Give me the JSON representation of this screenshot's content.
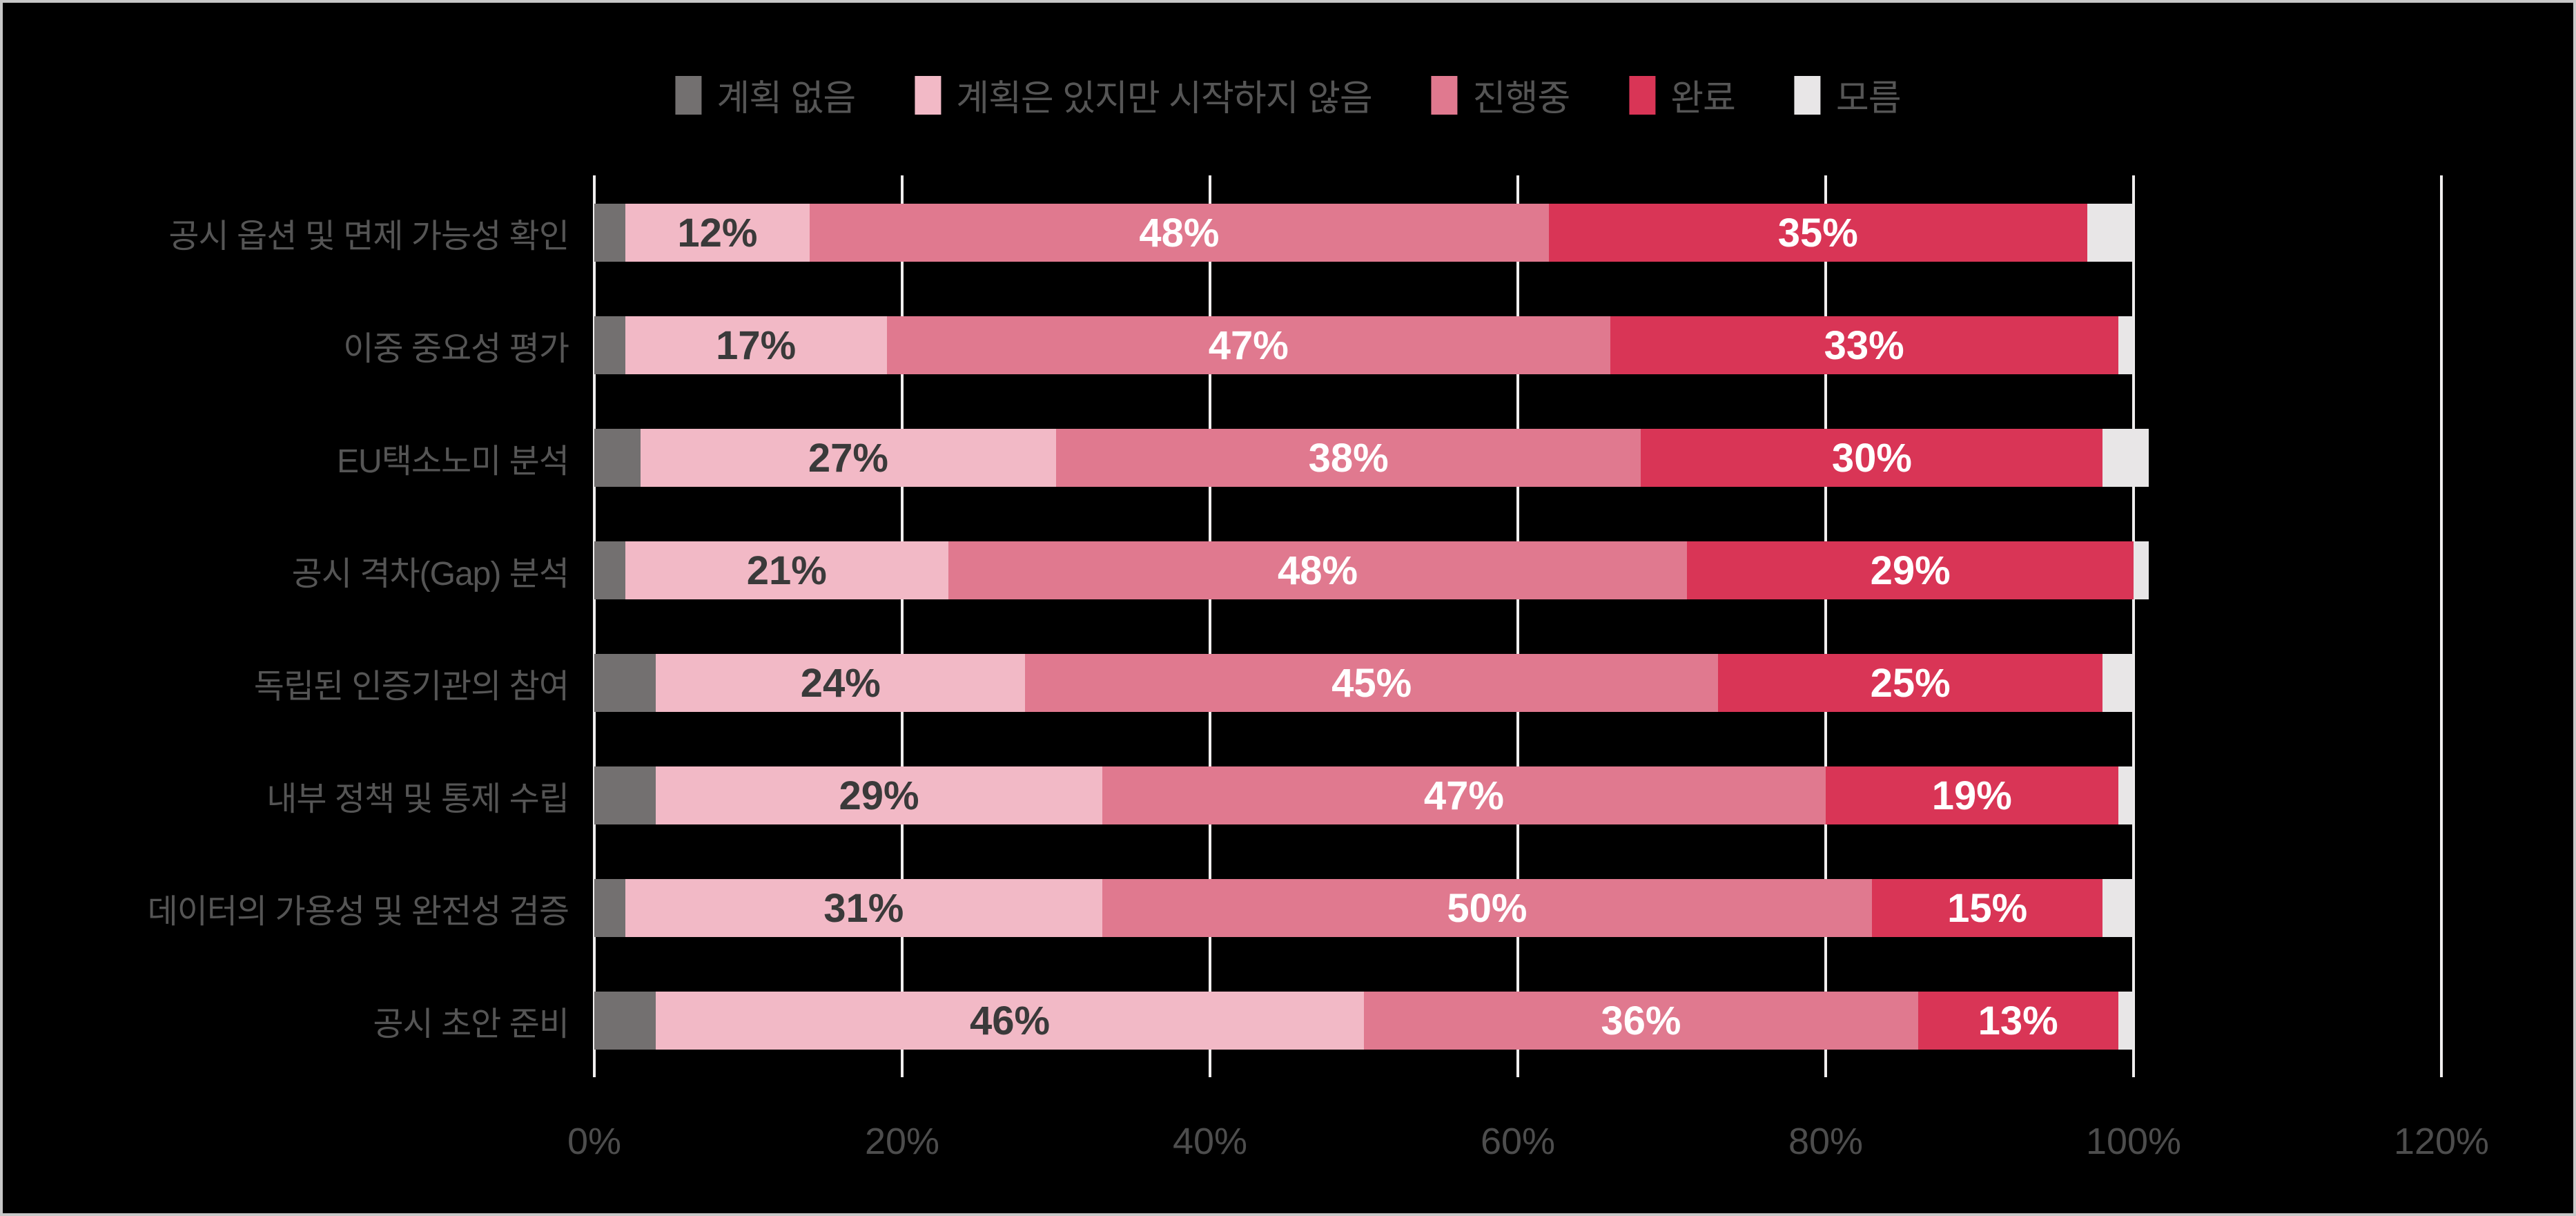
{
  "chart_data": {
    "type": "bar",
    "orientation": "horizontal_stacked",
    "title": "",
    "categories": [
      "공시 옵션 및 면제 가능성 확인",
      "이중 중요성 평가",
      "EU택소노미 분석",
      "공시 격차(Gap) 분석",
      "독립된 인증기관의 참여",
      "내부 정책 및 통제 수립",
      "데이터의 가용성 및 완전성 검증",
      "공시 초안 준비"
    ],
    "series": [
      {
        "name": "계획 없음",
        "color": "#737070",
        "show_labels": false,
        "values": [
          2,
          2,
          3,
          2,
          4,
          4,
          2,
          4
        ]
      },
      {
        "name": "계획은 있지만 시작하지 않음",
        "color": "#f2b9c6",
        "show_labels": true,
        "label_color": "#3a3a3a",
        "values": [
          12,
          17,
          27,
          21,
          24,
          29,
          31,
          46
        ]
      },
      {
        "name": "진행중",
        "color": "#e0798f",
        "show_labels": true,
        "label_color": "#ffffff",
        "values": [
          48,
          47,
          38,
          48,
          45,
          47,
          50,
          36
        ]
      },
      {
        "name": "완료",
        "color": "#d93556",
        "show_labels": true,
        "label_color": "#ffffff",
        "values": [
          35,
          33,
          30,
          29,
          25,
          19,
          15,
          13
        ]
      },
      {
        "name": "모름",
        "color": "#e8e6e7",
        "show_labels": false,
        "values": [
          3,
          1,
          3,
          1,
          2,
          1,
          2,
          1
        ]
      }
    ],
    "value_suffix": "%",
    "x_axis": {
      "ticks": [
        "0%",
        "20%",
        "40%",
        "60%",
        "80%",
        "100%",
        "120%"
      ],
      "min": 0,
      "max": 120,
      "step": 20
    },
    "legend_position": "top",
    "gridlines": "vertical",
    "ylim": [
      0,
      120
    ]
  },
  "colors": {
    "background": "#000000",
    "frame_border": "#c8c8c8",
    "gridline": "#f0eeee",
    "axis_text": "#4d4d4d",
    "category_text": "#555555",
    "legend_text": "#555555"
  }
}
